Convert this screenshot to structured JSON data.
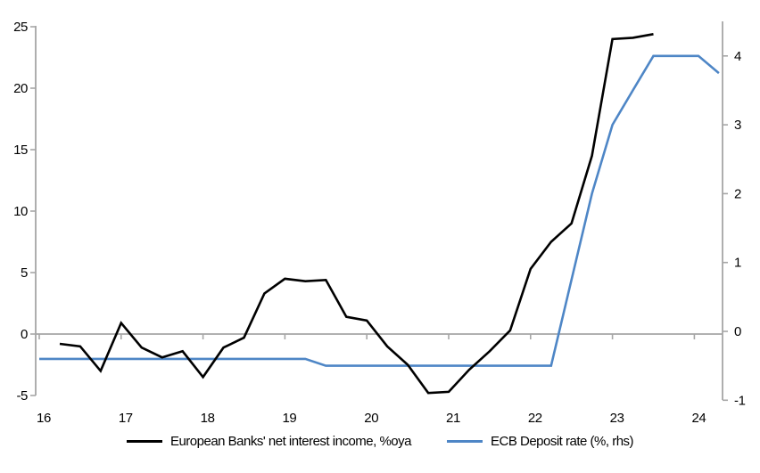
{
  "chart_data": {
    "type": "line",
    "title": "",
    "x_axis": {
      "ticks": [
        16,
        17,
        18,
        19,
        20,
        21,
        22,
        23,
        24
      ],
      "range": [
        16,
        24.35
      ]
    },
    "y_axis_left": {
      "ticks": [
        -5,
        0,
        5,
        10,
        15,
        20,
        25
      ],
      "range": [
        -5,
        25
      ]
    },
    "y_axis_right": {
      "ticks": [
        -1,
        0,
        1,
        2,
        3,
        4
      ],
      "range": [
        -1,
        4.5
      ]
    },
    "grid": "zero-line-only",
    "legend_position": "bottom-center",
    "axis_color": "#a6a6a6",
    "series": [
      {
        "name": "European Banks' net interest income, %oya",
        "axis": "left",
        "color": "#000000",
        "points": [
          [
            16.25,
            -0.8
          ],
          [
            16.5,
            -1.0
          ],
          [
            16.75,
            -3.0
          ],
          [
            17.0,
            0.9
          ],
          [
            17.25,
            -1.1
          ],
          [
            17.5,
            -1.9
          ],
          [
            17.75,
            -1.4
          ],
          [
            18.0,
            -3.5
          ],
          [
            18.25,
            -1.1
          ],
          [
            18.5,
            -0.3
          ],
          [
            18.75,
            3.3
          ],
          [
            19.0,
            4.5
          ],
          [
            19.25,
            4.3
          ],
          [
            19.5,
            4.4
          ],
          [
            19.75,
            1.4
          ],
          [
            20.0,
            1.1
          ],
          [
            20.25,
            -1.0
          ],
          [
            20.5,
            -2.5
          ],
          [
            20.75,
            -4.8
          ],
          [
            21.0,
            -4.7
          ],
          [
            21.25,
            -2.9
          ],
          [
            21.5,
            -1.4
          ],
          [
            21.75,
            0.3
          ],
          [
            22.0,
            5.3
          ],
          [
            22.25,
            7.5
          ],
          [
            22.5,
            9.0
          ],
          [
            22.75,
            14.5
          ],
          [
            23.0,
            24.0
          ],
          [
            23.25,
            24.1
          ],
          [
            23.5,
            24.4
          ]
        ]
      },
      {
        "name": "ECB Deposit rate (%, rhs)",
        "axis": "right",
        "color": "#4e86c6",
        "points": [
          [
            16.0,
            -0.4
          ],
          [
            19.25,
            -0.4
          ],
          [
            19.5,
            -0.5
          ],
          [
            22.25,
            -0.5
          ],
          [
            22.5,
            0.75
          ],
          [
            22.75,
            2.0
          ],
          [
            23.0,
            3.0
          ],
          [
            23.25,
            3.5
          ],
          [
            23.5,
            4.0
          ],
          [
            24.05,
            4.0
          ],
          [
            24.3,
            3.75
          ]
        ]
      }
    ]
  }
}
